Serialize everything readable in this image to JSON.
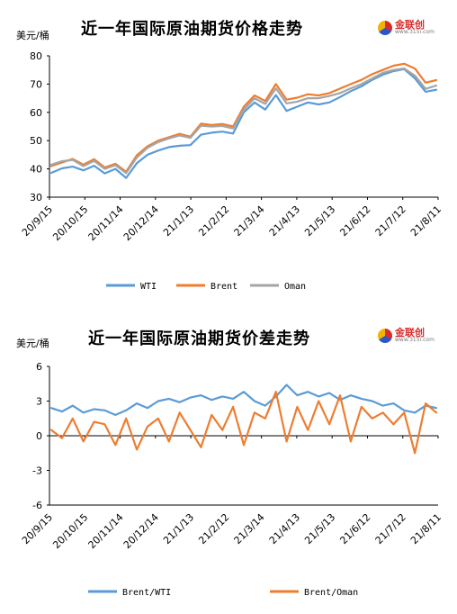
{
  "chart_data": [
    {
      "type": "line",
      "title": "近一年国际原油期货价格走势",
      "unit_label": "美元/桶",
      "ylim": [
        30,
        80
      ],
      "y_ticks": [
        "30",
        "40",
        "50",
        "60",
        "70",
        "80"
      ],
      "x_ticks": [
        "20/9/15",
        "20/10/15",
        "20/11/14",
        "20/12/14",
        "21/1/13",
        "21/2/12",
        "21/3/14",
        "21/4/13",
        "21/5/13",
        "21/6/12",
        "21/7/12",
        "21/8/11"
      ],
      "legend_position": "bottom",
      "series": [
        {
          "name": "WTI",
          "color": "#5b9bd5",
          "values": [
            38.6,
            40.2,
            40.8,
            39.5,
            41.1,
            38.4,
            40.0,
            36.8,
            42.0,
            45.0,
            46.5,
            47.7,
            48.2,
            48.4,
            52.1,
            52.8,
            53.2,
            52.5,
            60.0,
            63.5,
            61.0,
            66.1,
            60.5,
            62.0,
            63.5,
            62.8,
            63.5,
            65.4,
            67.5,
            69.2,
            71.5,
            73.3,
            74.6,
            75.3,
            72.0,
            67.3,
            68.0
          ]
        },
        {
          "name": "Brent",
          "color": "#ed7d31",
          "values": [
            41.0,
            42.3,
            43.5,
            41.5,
            43.4,
            40.5,
            41.8,
            39.0,
            44.8,
            48.0,
            50.0,
            51.2,
            52.4,
            51.4,
            56.0,
            55.5,
            55.9,
            55.0,
            62.0,
            66.0,
            64.0,
            70.0,
            64.5,
            65.2,
            66.4,
            66.0,
            66.8,
            68.4,
            70.0,
            71.5,
            73.5,
            75.0,
            76.5,
            77.2,
            75.5,
            70.5,
            71.4
          ]
        },
        {
          "name": "Oman",
          "color": "#a5a5a5",
          "values": [
            41.5,
            42.7,
            43.2,
            41.0,
            42.8,
            40.0,
            41.3,
            38.5,
            44.0,
            47.5,
            49.5,
            50.8,
            51.8,
            51.0,
            55.3,
            55.0,
            55.2,
            54.3,
            61.0,
            65.0,
            63.0,
            68.5,
            63.2,
            63.8,
            65.0,
            65.0,
            65.8,
            66.8,
            68.5,
            70.0,
            72.0,
            74.0,
            75.0,
            75.5,
            73.0,
            68.3,
            69.5
          ]
        }
      ]
    },
    {
      "type": "line",
      "title": "近一年国际原油期货价差走势",
      "unit_label": "美元/桶",
      "ylim": [
        -6,
        6
      ],
      "y_ticks": [
        "-6",
        "-3",
        "0",
        "3",
        "6"
      ],
      "x_ticks": [
        "20/9/15",
        "20/10/15",
        "20/11/14",
        "20/12/14",
        "21/1/13",
        "21/2/12",
        "21/3/14",
        "21/4/13",
        "21/5/13",
        "21/6/12",
        "21/7/12",
        "21/8/11"
      ],
      "legend_position": "bottom",
      "series": [
        {
          "name": "Brent/WTI",
          "color": "#5b9bd5",
          "values": [
            2.4,
            2.1,
            2.6,
            2.0,
            2.3,
            2.2,
            1.8,
            2.2,
            2.8,
            2.4,
            3.0,
            3.2,
            2.9,
            3.3,
            3.5,
            3.1,
            3.4,
            3.2,
            3.8,
            3.0,
            2.6,
            3.4,
            4.4,
            3.5,
            3.8,
            3.4,
            3.7,
            3.1,
            3.5,
            3.2,
            3.0,
            2.6,
            2.8,
            2.2,
            2.0,
            2.6,
            2.4
          ]
        },
        {
          "name": "Brent/Oman",
          "color": "#ed7d31",
          "values": [
            0.5,
            -0.2,
            1.5,
            -0.5,
            1.2,
            1.0,
            -0.8,
            1.5,
            -1.2,
            0.8,
            1.5,
            -0.5,
            2.0,
            0.5,
            -1.0,
            1.8,
            0.5,
            2.5,
            -0.8,
            2.0,
            1.5,
            3.8,
            -0.5,
            2.5,
            0.5,
            3.0,
            1.0,
            3.5,
            -0.5,
            2.5,
            1.5,
            2.0,
            1.0,
            2.0,
            -1.5,
            2.8,
            2.0
          ]
        }
      ]
    }
  ],
  "logo": {
    "name": "金联创",
    "sub": "www.315i.com"
  }
}
